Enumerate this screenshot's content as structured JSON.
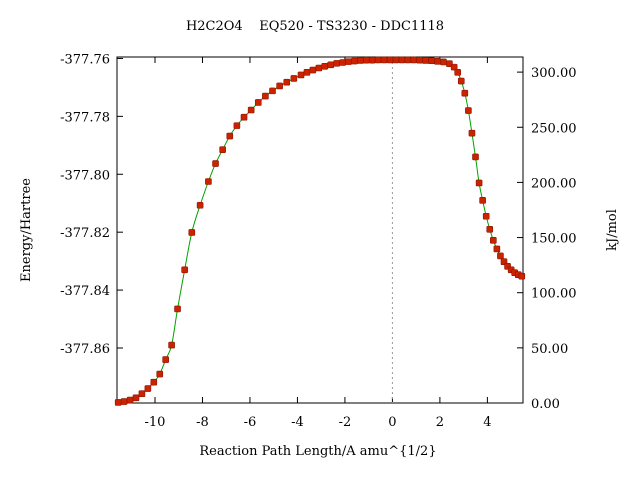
{
  "chart_data": {
    "type": "line",
    "title": "H2C2O4    EQ520 - TS3230 - DDC1118",
    "xlabel": "Reaction Path Length/A amu^{1/2}",
    "ylabel": "Energy/Hartree",
    "y2label": "kJ/mol",
    "xlim": [
      -11.6,
      5.5
    ],
    "ylim": [
      -377.879,
      -377.7595
    ],
    "y2lim": [
      0,
      313.7
    ],
    "xticks": [
      -10,
      -8,
      -6,
      -4,
      -2,
      0,
      2,
      4
    ],
    "yticks": [
      -377.86,
      -377.84,
      -377.82,
      -377.8,
      -377.78,
      -377.76
    ],
    "ytick_labels": [
      "-377.86",
      "-377.84",
      "-377.82",
      "-377.80",
      "-377.78",
      "-377.76"
    ],
    "y2ticks": [
      0,
      50,
      100,
      150,
      200,
      250,
      300
    ],
    "y2tick_labels": [
      "0.00",
      "50.00",
      "100.00",
      "150.00",
      "200.00",
      "250.00",
      "300.00"
    ],
    "ts_marker_x": 0,
    "grid": false,
    "colors": {
      "line": "#00a000",
      "marker": "#cc2200",
      "ts_line": "#999999",
      "axis": "#000000"
    },
    "series": [
      {
        "x": [
          -11.55,
          -11.3,
          -11.05,
          -10.8,
          -10.55,
          -10.3,
          -10.05,
          -9.8,
          -9.55,
          -9.3,
          -9.05,
          -8.75,
          -8.45,
          -8.1,
          -7.75,
          -7.45,
          -7.15,
          -6.85,
          -6.55,
          -6.25,
          -5.95,
          -5.65,
          -5.35,
          -5.05,
          -4.75,
          -4.45,
          -4.15,
          -3.85,
          -3.6,
          -3.35,
          -3.1,
          -2.85,
          -2.6,
          -2.35,
          -2.1,
          -1.85,
          -1.6,
          -1.35,
          -1.1,
          -0.85,
          -0.6,
          -0.35,
          -0.1,
          0.15,
          0.4,
          0.65,
          0.9,
          1.15,
          1.4,
          1.65,
          1.9,
          2.15,
          2.4,
          2.6,
          2.75,
          2.9,
          3.05,
          3.2,
          3.35,
          3.5,
          3.65,
          3.8,
          3.95,
          4.1,
          4.25,
          4.4,
          4.55,
          4.7,
          4.85,
          5.0,
          5.15,
          5.3,
          5.45
        ],
        "y": [
          -377.8788,
          -377.8785,
          -377.878,
          -377.8772,
          -377.8758,
          -377.874,
          -377.8718,
          -377.869,
          -377.864,
          -377.859,
          -377.8465,
          -377.833,
          -377.8201,
          -377.8107,
          -377.8025,
          -377.7963,
          -377.7915,
          -377.7868,
          -377.7832,
          -377.7803,
          -377.7778,
          -377.7752,
          -377.773,
          -377.7712,
          -377.7695,
          -377.7682,
          -377.7669,
          -377.7657,
          -377.7648,
          -377.764,
          -377.7633,
          -377.7627,
          -377.7622,
          -377.7617,
          -377.7614,
          -377.7611,
          -377.7609,
          -377.7607,
          -377.7606,
          -377.7606,
          -377.7605,
          -377.7605,
          -377.7605,
          -377.7605,
          -377.7605,
          -377.7605,
          -377.7605,
          -377.7606,
          -377.7607,
          -377.7608,
          -377.761,
          -377.7612,
          -377.7618,
          -377.763,
          -377.7648,
          -377.7678,
          -377.772,
          -377.778,
          -377.7858,
          -377.794,
          -377.803,
          -377.809,
          -377.8145,
          -377.819,
          -377.8228,
          -377.8258,
          -377.8282,
          -377.8302,
          -377.8318,
          -377.833,
          -377.834,
          -377.8347,
          -377.8352
        ]
      }
    ]
  }
}
